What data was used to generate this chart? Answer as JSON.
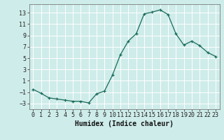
{
  "x": [
    0,
    1,
    2,
    3,
    4,
    5,
    6,
    7,
    8,
    9,
    10,
    11,
    12,
    13,
    14,
    15,
    16,
    17,
    18,
    19,
    20,
    21,
    22,
    23
  ],
  "y": [
    -0.5,
    -1.2,
    -2.0,
    -2.2,
    -2.4,
    -2.6,
    -2.6,
    -2.9,
    -1.3,
    -0.8,
    2.0,
    5.6,
    8.0,
    9.3,
    12.8,
    13.1,
    13.5,
    12.7,
    9.3,
    7.3,
    8.0,
    7.2,
    6.0,
    5.3
  ],
  "line_color": "#1a6b5a",
  "marker": "+",
  "marker_size": 3.5,
  "marker_lw": 0.9,
  "line_width": 0.9,
  "background_color": "#ceecea",
  "grid_color": "#ffffff",
  "grid_lw": 0.7,
  "xlabel": "Humidex (Indice chaleur)",
  "xlim": [
    -0.5,
    23.5
  ],
  "ylim": [
    -4,
    14.5
  ],
  "yticks": [
    -3,
    -1,
    1,
    3,
    5,
    7,
    9,
    11,
    13
  ],
  "xticks": [
    0,
    1,
    2,
    3,
    4,
    5,
    6,
    7,
    8,
    9,
    10,
    11,
    12,
    13,
    14,
    15,
    16,
    17,
    18,
    19,
    20,
    21,
    22,
    23
  ],
  "tick_labelsize": 6,
  "xlabel_fontsize": 7
}
